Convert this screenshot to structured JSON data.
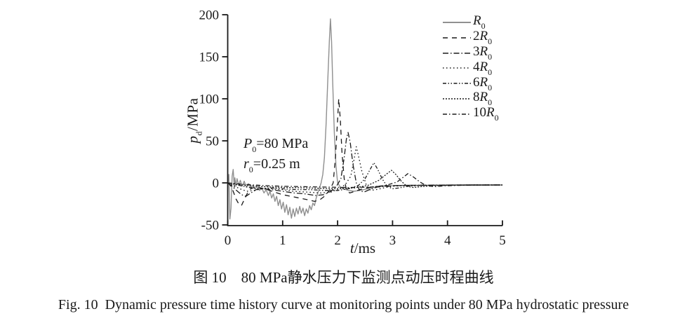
{
  "figure": {
    "caption_zh": "图 10　80 MPa静水压力下监测点动压时程曲线",
    "caption_en": "Fig. 10  Dynamic pressure time history curve at monitoring points under 80 MPa hydrostatic pressure"
  },
  "axes": {
    "ylabel": {
      "symbol": "p",
      "sub": "d",
      "rest": "/MPa"
    },
    "xlabel": {
      "symbol": "t",
      "rest": "/ms"
    }
  },
  "annotation": {
    "p_line": {
      "symbol": "P",
      "sub": "0",
      "rest": "=80 MPa"
    },
    "r_line": {
      "symbol": "r",
      "sub": "0",
      "rest": "=0.25 m"
    }
  },
  "legend": {
    "position": "upper right",
    "entries": [
      {
        "prefix": "",
        "symbol": "R",
        "sub": "0",
        "dash": "",
        "color": "#6b6b6b"
      },
      {
        "prefix": "2",
        "symbol": "R",
        "sub": "0",
        "dash": "7 6",
        "color": "#1a1a1a"
      },
      {
        "prefix": "3",
        "symbol": "R",
        "sub": "0",
        "dash": "8 3 1.5 3",
        "color": "#1a1a1a"
      },
      {
        "prefix": "4",
        "symbol": "R",
        "sub": "0",
        "dash": "1.5 3.5",
        "color": "#1a1a1a"
      },
      {
        "prefix": "6",
        "symbol": "R",
        "sub": "0",
        "dash": "5 2.5 1.5 2.5 1.5 2.5",
        "color": "#1a1a1a"
      },
      {
        "prefix": "8",
        "symbol": "R",
        "sub": "0",
        "dash": "2 2",
        "color": "#1a1a1a"
      },
      {
        "prefix": "10",
        "symbol": "R",
        "sub": "0",
        "dash": "6 3 1.5 3",
        "color": "#1a1a1a"
      }
    ]
  },
  "chart_data": {
    "type": "line",
    "title": "Dynamic pressure time history curve at monitoring points under 80 MPa hydrostatic pressure",
    "xlabel": "t/ms",
    "ylabel": "p_d/MPa",
    "xlim": [
      0,
      5
    ],
    "ylim": [
      -50,
      200
    ],
    "xticks": [
      0,
      1,
      2,
      3,
      4,
      5
    ],
    "yticks": [
      -50,
      0,
      50,
      100,
      150,
      200
    ],
    "grid": false,
    "annotations": [
      "P0=80 MPa",
      "r0=0.25 m"
    ],
    "axis_color": "#1a1a1a",
    "series": [
      {
        "name": "R0",
        "style": "solid",
        "dash": "",
        "color": "#8f8f8f",
        "width": 1.4,
        "points": [
          [
            0,
            0
          ],
          [
            0.02,
            10
          ],
          [
            0.03,
            -15
          ],
          [
            0.04,
            -43
          ],
          [
            0.06,
            -30
          ],
          [
            0.07,
            -10
          ],
          [
            0.08,
            8
          ],
          [
            0.1,
            16
          ],
          [
            0.12,
            -6
          ],
          [
            0.13,
            6
          ],
          [
            0.15,
            -4
          ],
          [
            0.17,
            5
          ],
          [
            0.2,
            -3
          ],
          [
            0.23,
            3
          ],
          [
            0.26,
            -4
          ],
          [
            0.3,
            2
          ],
          [
            0.34,
            -5
          ],
          [
            0.38,
            -1
          ],
          [
            0.42,
            -6
          ],
          [
            0.46,
            -3
          ],
          [
            0.5,
            -7
          ],
          [
            0.54,
            -4
          ],
          [
            0.58,
            -9
          ],
          [
            0.62,
            -6
          ],
          [
            0.66,
            -12
          ],
          [
            0.7,
            -8
          ],
          [
            0.74,
            -15
          ],
          [
            0.77,
            -10
          ],
          [
            0.8,
            -18
          ],
          [
            0.83,
            -13
          ],
          [
            0.86,
            -22
          ],
          [
            0.89,
            -16
          ],
          [
            0.92,
            -27
          ],
          [
            0.95,
            -20
          ],
          [
            0.98,
            -31
          ],
          [
            1.01,
            -23
          ],
          [
            1.04,
            -35
          ],
          [
            1.07,
            -26
          ],
          [
            1.1,
            -38
          ],
          [
            1.13,
            -29
          ],
          [
            1.16,
            -42
          ],
          [
            1.19,
            -31
          ],
          [
            1.22,
            -40
          ],
          [
            1.25,
            -30
          ],
          [
            1.28,
            -37
          ],
          [
            1.31,
            -28
          ],
          [
            1.34,
            -36
          ],
          [
            1.37,
            -30
          ],
          [
            1.4,
            -39
          ],
          [
            1.43,
            -31
          ],
          [
            1.46,
            -36
          ],
          [
            1.49,
            -27
          ],
          [
            1.52,
            -32
          ],
          [
            1.55,
            -24
          ],
          [
            1.58,
            -27
          ],
          [
            1.61,
            -18
          ],
          [
            1.64,
            -12
          ],
          [
            1.67,
            -6
          ],
          [
            1.7,
            0
          ],
          [
            1.73,
            10
          ],
          [
            1.76,
            30
          ],
          [
            1.79,
            70
          ],
          [
            1.82,
            120
          ],
          [
            1.85,
            170
          ],
          [
            1.87,
            195
          ],
          [
            1.89,
            168
          ],
          [
            1.91,
            120
          ],
          [
            1.94,
            60
          ],
          [
            1.97,
            20
          ],
          [
            2.0,
            0
          ],
          [
            2.05,
            -5
          ],
          [
            2.1,
            -7
          ],
          [
            2.2,
            -9
          ],
          [
            2.3,
            -10
          ],
          [
            2.4,
            -9
          ],
          [
            2.55,
            -7
          ],
          [
            2.7,
            -5
          ],
          [
            2.9,
            -3.5
          ],
          [
            3.2,
            -3
          ],
          [
            3.6,
            -2.8
          ],
          [
            4.0,
            -2.6
          ],
          [
            4.5,
            -2.5
          ],
          [
            5.0,
            -2.5
          ]
        ]
      },
      {
        "name": "2R0",
        "style": "dashed",
        "dash": "7 6",
        "color": "#1a1a1a",
        "width": 1.3,
        "points": [
          [
            0,
            0
          ],
          [
            0.05,
            -3
          ],
          [
            0.1,
            -10
          ],
          [
            0.15,
            -19
          ],
          [
            0.2,
            -25
          ],
          [
            0.25,
            -27
          ],
          [
            0.3,
            -20
          ],
          [
            0.36,
            -12
          ],
          [
            0.42,
            -7
          ],
          [
            0.5,
            -5
          ],
          [
            0.6,
            -6
          ],
          [
            0.72,
            -8
          ],
          [
            0.85,
            -11
          ],
          [
            1.0,
            -14
          ],
          [
            1.15,
            -16
          ],
          [
            1.3,
            -18
          ],
          [
            1.45,
            -20
          ],
          [
            1.58,
            -22
          ],
          [
            1.68,
            -20
          ],
          [
            1.78,
            -15
          ],
          [
            1.86,
            -8
          ],
          [
            1.92,
            0
          ],
          [
            1.96,
            30
          ],
          [
            2.0,
            75
          ],
          [
            2.02,
            100
          ],
          [
            2.05,
            75
          ],
          [
            2.08,
            35
          ],
          [
            2.12,
            5
          ],
          [
            2.16,
            -8
          ],
          [
            2.22,
            -12
          ],
          [
            2.32,
            -10
          ],
          [
            2.45,
            -7
          ],
          [
            2.62,
            -5
          ],
          [
            2.85,
            -3.5
          ],
          [
            3.2,
            -3
          ],
          [
            3.6,
            -2.8
          ],
          [
            4.0,
            -2.6
          ],
          [
            4.5,
            -2.5
          ],
          [
            5.0,
            -2.5
          ]
        ]
      },
      {
        "name": "3R0",
        "style": "dashdot",
        "dash": "8 3 1.5 3",
        "color": "#1a1a1a",
        "width": 1.3,
        "points": [
          [
            0,
            0
          ],
          [
            0.08,
            -4
          ],
          [
            0.16,
            -9
          ],
          [
            0.25,
            -14
          ],
          [
            0.33,
            -16
          ],
          [
            0.42,
            -12
          ],
          [
            0.52,
            -8
          ],
          [
            0.65,
            -7
          ],
          [
            0.8,
            -8
          ],
          [
            1.0,
            -10
          ],
          [
            1.2,
            -12
          ],
          [
            1.4,
            -13
          ],
          [
            1.6,
            -15
          ],
          [
            1.75,
            -14
          ],
          [
            1.88,
            -10
          ],
          [
            1.98,
            -4
          ],
          [
            2.06,
            5
          ],
          [
            2.12,
            30
          ],
          [
            2.16,
            52
          ],
          [
            2.19,
            60
          ],
          [
            2.23,
            48
          ],
          [
            2.28,
            22
          ],
          [
            2.34,
            0
          ],
          [
            2.4,
            -9
          ],
          [
            2.48,
            -11
          ],
          [
            2.58,
            -8
          ],
          [
            2.72,
            -5
          ],
          [
            2.9,
            -4
          ],
          [
            3.2,
            -3
          ],
          [
            3.6,
            -2.8
          ],
          [
            4.2,
            -2.6
          ],
          [
            5.0,
            -2.5
          ]
        ]
      },
      {
        "name": "4R0",
        "style": "dotted",
        "dash": "1.5 3.5",
        "color": "#1a1a1a",
        "width": 1.4,
        "points": [
          [
            0,
            0
          ],
          [
            0.1,
            -3
          ],
          [
            0.22,
            -7
          ],
          [
            0.35,
            -10
          ],
          [
            0.48,
            -9
          ],
          [
            0.62,
            -7
          ],
          [
            0.8,
            -7
          ],
          [
            1.0,
            -8
          ],
          [
            1.2,
            -10
          ],
          [
            1.45,
            -11
          ],
          [
            1.7,
            -12
          ],
          [
            1.88,
            -11
          ],
          [
            2.02,
            -7
          ],
          [
            2.14,
            -2
          ],
          [
            2.24,
            8
          ],
          [
            2.3,
            28
          ],
          [
            2.34,
            43
          ],
          [
            2.38,
            32
          ],
          [
            2.44,
            14
          ],
          [
            2.52,
            -2
          ],
          [
            2.6,
            -9
          ],
          [
            2.7,
            -8
          ],
          [
            2.84,
            -6
          ],
          [
            3.0,
            -4
          ],
          [
            3.3,
            -3
          ],
          [
            3.7,
            -2.8
          ],
          [
            4.2,
            -2.6
          ],
          [
            5.0,
            -2.5
          ]
        ]
      },
      {
        "name": "6R0",
        "style": "dashdotdot",
        "dash": "5 2.5 1.5 2.5 1.5 2.5",
        "color": "#1a1a1a",
        "width": 1.3,
        "points": [
          [
            0,
            0
          ],
          [
            0.15,
            -2
          ],
          [
            0.35,
            -5
          ],
          [
            0.55,
            -7
          ],
          [
            0.78,
            -6
          ],
          [
            1.0,
            -7
          ],
          [
            1.25,
            -8
          ],
          [
            1.5,
            -8
          ],
          [
            1.75,
            -9
          ],
          [
            2.0,
            -9
          ],
          [
            2.2,
            -7
          ],
          [
            2.38,
            -3
          ],
          [
            2.5,
            5
          ],
          [
            2.6,
            17
          ],
          [
            2.66,
            24
          ],
          [
            2.73,
            16
          ],
          [
            2.81,
            5
          ],
          [
            2.9,
            -4
          ],
          [
            3.0,
            -7
          ],
          [
            3.12,
            -6
          ],
          [
            3.28,
            -4
          ],
          [
            3.5,
            -3
          ],
          [
            3.8,
            -2.8
          ],
          [
            4.2,
            -2.6
          ],
          [
            5.0,
            -2.5
          ]
        ]
      },
      {
        "name": "8R0",
        "style": "fine-dashed",
        "dash": "2 2",
        "color": "#1a1a1a",
        "width": 1.3,
        "points": [
          [
            0,
            0
          ],
          [
            0.2,
            -2
          ],
          [
            0.5,
            -4
          ],
          [
            0.8,
            -5
          ],
          [
            1.1,
            -5.5
          ],
          [
            1.4,
            -6
          ],
          [
            1.7,
            -6.5
          ],
          [
            2.0,
            -7
          ],
          [
            2.3,
            -6
          ],
          [
            2.55,
            -3
          ],
          [
            2.75,
            3
          ],
          [
            2.9,
            11
          ],
          [
            2.98,
            15
          ],
          [
            3.06,
            10
          ],
          [
            3.16,
            2
          ],
          [
            3.26,
            -4
          ],
          [
            3.38,
            -5.5
          ],
          [
            3.52,
            -4.5
          ],
          [
            3.7,
            -3.5
          ],
          [
            3.95,
            -3
          ],
          [
            4.3,
            -2.6
          ],
          [
            5.0,
            -2.5
          ]
        ]
      },
      {
        "name": "10R0",
        "style": "long-dashdot",
        "dash": "6 3 1.5 3",
        "color": "#1a1a1a",
        "width": 1.3,
        "points": [
          [
            0,
            0
          ],
          [
            0.25,
            -1.5
          ],
          [
            0.6,
            -3
          ],
          [
            1.0,
            -4
          ],
          [
            1.4,
            -4.5
          ],
          [
            1.8,
            -5
          ],
          [
            2.2,
            -5.5
          ],
          [
            2.6,
            -5
          ],
          [
            2.88,
            -3
          ],
          [
            3.08,
            1
          ],
          [
            3.2,
            7
          ],
          [
            3.28,
            11
          ],
          [
            3.38,
            7
          ],
          [
            3.5,
            1
          ],
          [
            3.62,
            -3.5
          ],
          [
            3.78,
            -4.5
          ],
          [
            3.95,
            -3.5
          ],
          [
            4.2,
            -3
          ],
          [
            4.6,
            -2.6
          ],
          [
            5.0,
            -2.5
          ]
        ]
      }
    ]
  }
}
